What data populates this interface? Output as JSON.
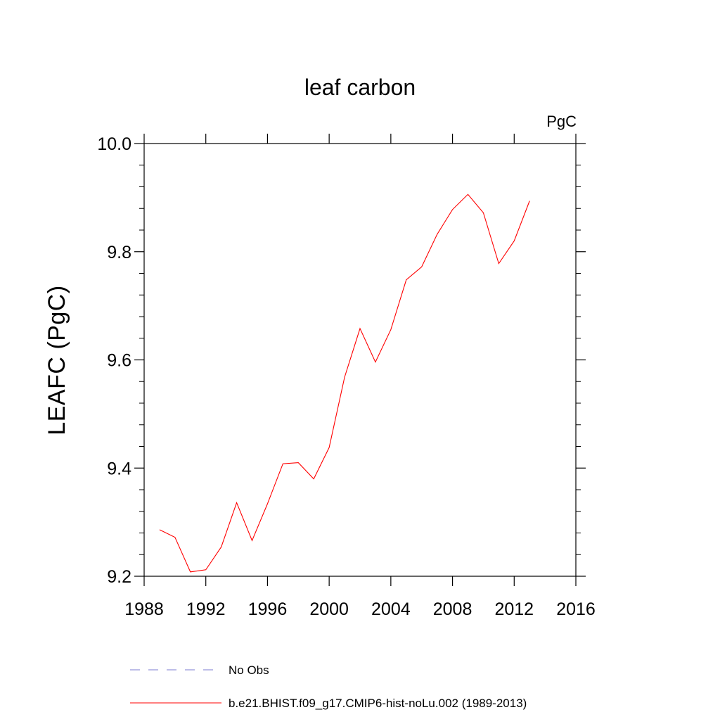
{
  "chart_data": {
    "type": "line",
    "title": "leaf carbon",
    "units_label": "PgC",
    "ylabel": "LEAFC  (PgC)",
    "xlabel": "",
    "xlim": [
      1988,
      2016
    ],
    "ylim": [
      9.2,
      10.0
    ],
    "x_ticks": [
      "1988",
      "1992",
      "1996",
      "2000",
      "2004",
      "2008",
      "2012",
      "2016"
    ],
    "y_ticks": [
      "9.2",
      "9.4",
      "9.6",
      "9.8",
      "10.0"
    ],
    "grid": false,
    "legend_position": "bottom",
    "series": [
      {
        "name": "No Obs",
        "color": "#7b7bd0",
        "style": "dashed",
        "values": []
      },
      {
        "name": "b.e21.BHIST.f09_g17.CMIP6-hist-noLu.002 (1989-2013)",
        "color": "#ff0000",
        "style": "solid",
        "x": [
          1989,
          1990,
          1991,
          1992,
          1993,
          1994,
          1995,
          1996,
          1997,
          1998,
          1999,
          2000,
          2001,
          2002,
          2003,
          2004,
          2005,
          2006,
          2007,
          2008,
          2009,
          2010,
          2011,
          2012,
          2013
        ],
        "values": [
          9.286,
          9.272,
          9.208,
          9.212,
          9.254,
          9.336,
          9.266,
          9.334,
          9.408,
          9.41,
          9.38,
          9.438,
          9.568,
          9.658,
          9.596,
          9.656,
          9.748,
          9.772,
          9.832,
          9.878,
          9.906,
          9.872,
          9.778,
          9.82,
          9.894
        ]
      }
    ]
  }
}
